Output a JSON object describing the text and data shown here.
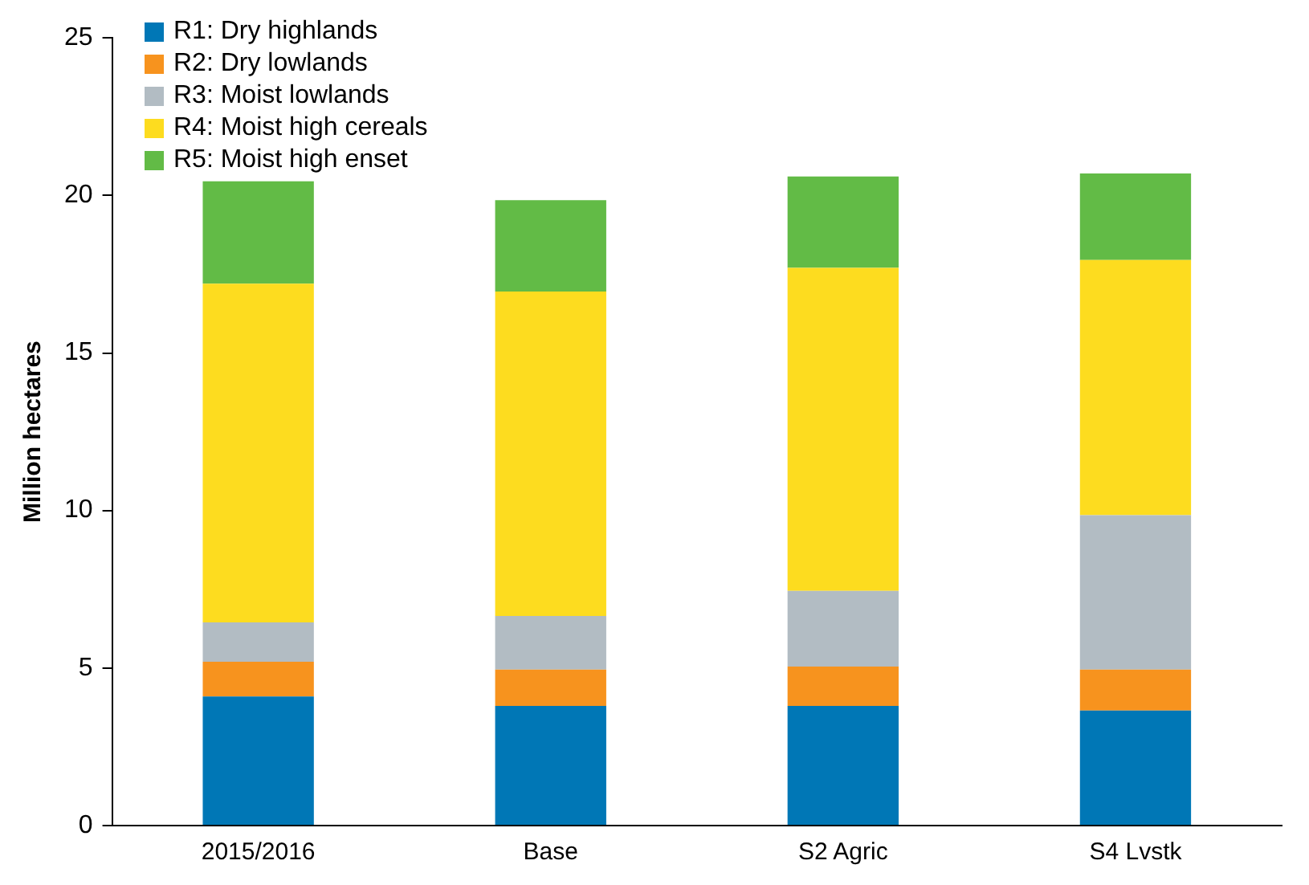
{
  "chart_data": {
    "type": "bar",
    "stacked": true,
    "ylabel": "Million hectares",
    "categories": [
      "2015/2016",
      "Base",
      "S2 Agric",
      "S4 Lvstk"
    ],
    "series": [
      {
        "name": "R1: Dry highlands",
        "color": "#0077b6",
        "values": [
          4.1,
          3.8,
          3.8,
          3.65
        ]
      },
      {
        "name": "R2: Dry lowlands",
        "color": "#f7931e",
        "values": [
          1.1,
          1.15,
          1.25,
          1.3
        ]
      },
      {
        "name": "R3: Moist lowlands",
        "color": "#b2bcc3",
        "values": [
          1.25,
          1.7,
          2.4,
          4.9
        ]
      },
      {
        "name": "R4: Moist high cereals",
        "color": "#fddc1f",
        "values": [
          10.75,
          10.3,
          10.25,
          8.1
        ]
      },
      {
        "name": "R5: Moist high enset",
        "color": "#62bb46",
        "values": [
          3.25,
          2.9,
          2.9,
          2.75
        ]
      }
    ],
    "ylim": [
      0,
      25
    ],
    "yticks": [
      0,
      5,
      10,
      15,
      20,
      25
    ],
    "grid": false,
    "legend": "top left"
  }
}
